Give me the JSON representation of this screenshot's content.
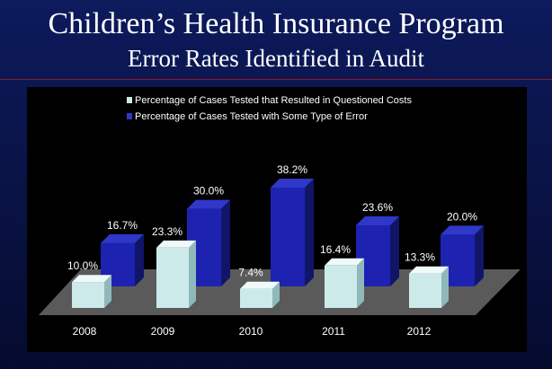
{
  "header": {
    "title": "Children’s Health Insurance Program",
    "subtitle": "Error Rates Identified in Audit"
  },
  "colors": {
    "front_face": "#cdeaea",
    "front_side": "#8fb8bb",
    "front_top": "#eef9f9",
    "back_face": "#1d23b0",
    "back_side": "#101568",
    "back_top": "#2f38c8",
    "floor": "#5a5a5a"
  },
  "chart_data": {
    "type": "bar",
    "categories": [
      "2008",
      "2009",
      "2010",
      "2011",
      "2012"
    ],
    "series": [
      {
        "name": "Percentage of Cases Tested that Resulted in Questioned Costs",
        "values": [
          10.0,
          23.3,
          7.4,
          16.4,
          13.3
        ],
        "labels": [
          "10.0%",
          "23.3%",
          "7.4%",
          "16.4%",
          "13.3%"
        ]
      },
      {
        "name": "Percentage of Cases Tested with Some Type of Error",
        "values": [
          16.7,
          30.0,
          38.2,
          23.6,
          20.0
        ],
        "labels": [
          "16.7%",
          "30.0%",
          "38.2%",
          "23.6%",
          "20.0%"
        ]
      }
    ],
    "legend_position": "top",
    "grid": false,
    "ylim": [
      0,
      40
    ]
  }
}
